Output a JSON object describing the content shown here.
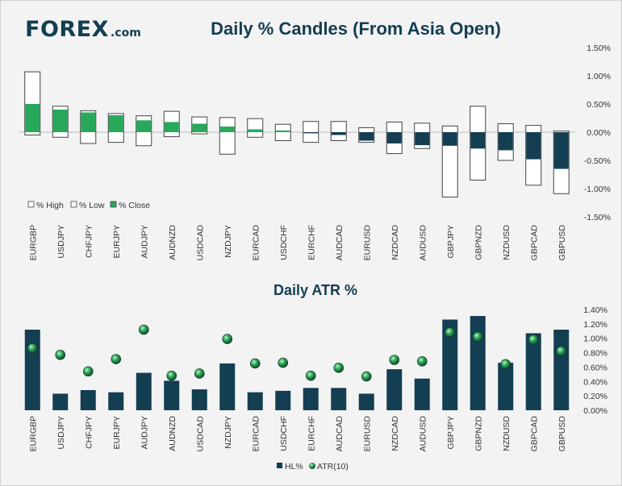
{
  "header": {
    "logo_text": "FOREX",
    "logo_domain": ".com"
  },
  "colors": {
    "navy": "#143e52",
    "green": "#27a85b",
    "grid": "#c8c8c8",
    "text": "#333333",
    "title": "#143e52"
  },
  "chart_data": [
    {
      "type": "bar",
      "title": "Daily % Candles (From Asia Open)",
      "categories": [
        "EURGBP",
        "USDJPY",
        "CHFJPY",
        "EURJPY",
        "AUDJPY",
        "AUDNZD",
        "USDCAD",
        "NZDJPY",
        "EURCAD",
        "USDCHF",
        "EURCHF",
        "AUDCAD",
        "EURUSD",
        "NZDCAD",
        "AUDUSD",
        "GBPJPY",
        "GBPNZD",
        "NZDUSD",
        "GBPCAD",
        "GBPUSD"
      ],
      "series": [
        {
          "name": "% High",
          "values": [
            1.07,
            0.46,
            0.38,
            0.33,
            0.29,
            0.37,
            0.27,
            0.26,
            0.24,
            0.14,
            0.19,
            0.19,
            0.08,
            0.18,
            0.16,
            0.11,
            0.46,
            0.15,
            0.12,
            0.02
          ]
        },
        {
          "name": "% Low",
          "values": [
            -0.05,
            -0.09,
            -0.2,
            -0.18,
            -0.24,
            -0.08,
            -0.03,
            -0.39,
            -0.09,
            -0.15,
            -0.18,
            -0.15,
            -0.18,
            -0.38,
            -0.29,
            -1.15,
            -0.85,
            -0.5,
            -0.94,
            -1.09
          ]
        },
        {
          "name": "% Close",
          "values": [
            0.5,
            0.4,
            0.35,
            0.3,
            0.21,
            0.18,
            0.15,
            0.1,
            0.05,
            0.03,
            -0.02,
            -0.05,
            -0.15,
            -0.2,
            -0.23,
            -0.24,
            -0.29,
            -0.32,
            -0.48,
            -0.65
          ]
        }
      ],
      "y_ticks": [
        "1.50%",
        "1.00%",
        "0.50%",
        "0.00%",
        "-0.50%",
        "-1.00%",
        "-1.50%"
      ],
      "ylim": [
        -1.5,
        1.5
      ],
      "legend": [
        {
          "label": "% High"
        },
        {
          "label": "% Low"
        },
        {
          "label": "% Close"
        }
      ],
      "legend_position": "bottom-left"
    },
    {
      "type": "bar",
      "title": "Daily ATR %",
      "categories": [
        "EURGBP",
        "USDJPY",
        "CHFJPY",
        "EURJPY",
        "AUDJPY",
        "AUDNZD",
        "USDCAD",
        "NZDJPY",
        "EURCAD",
        "USDCHF",
        "EURCHF",
        "AUDCAD",
        "EURUSD",
        "NZDCAD",
        "AUDUSD",
        "GBPJPY",
        "GBPNZD",
        "NZDUSD",
        "GBPCAD",
        "GBPUSD"
      ],
      "series": [
        {
          "name": "HL%",
          "values": [
            1.12,
            0.23,
            0.28,
            0.25,
            0.52,
            0.41,
            0.29,
            0.65,
            0.25,
            0.27,
            0.31,
            0.31,
            0.23,
            0.57,
            0.44,
            1.26,
            1.31,
            0.66,
            1.07,
            1.12
          ]
        },
        {
          "name": "ATR(10)",
          "values": [
            0.86,
            0.77,
            0.54,
            0.71,
            1.12,
            0.48,
            0.51,
            0.99,
            0.65,
            0.66,
            0.48,
            0.59,
            0.47,
            0.7,
            0.68,
            1.08,
            1.02,
            0.64,
            0.98,
            0.82
          ]
        }
      ],
      "y_ticks": [
        "1.40%",
        "1.20%",
        "1.00%",
        "0.80%",
        "0.60%",
        "0.40%",
        "0.20%",
        "0.00%"
      ],
      "ylim": [
        0,
        1.4
      ],
      "legend": [
        {
          "label": "HL%"
        },
        {
          "label": "ATR(10)"
        }
      ],
      "legend_position": "bottom-center"
    }
  ]
}
